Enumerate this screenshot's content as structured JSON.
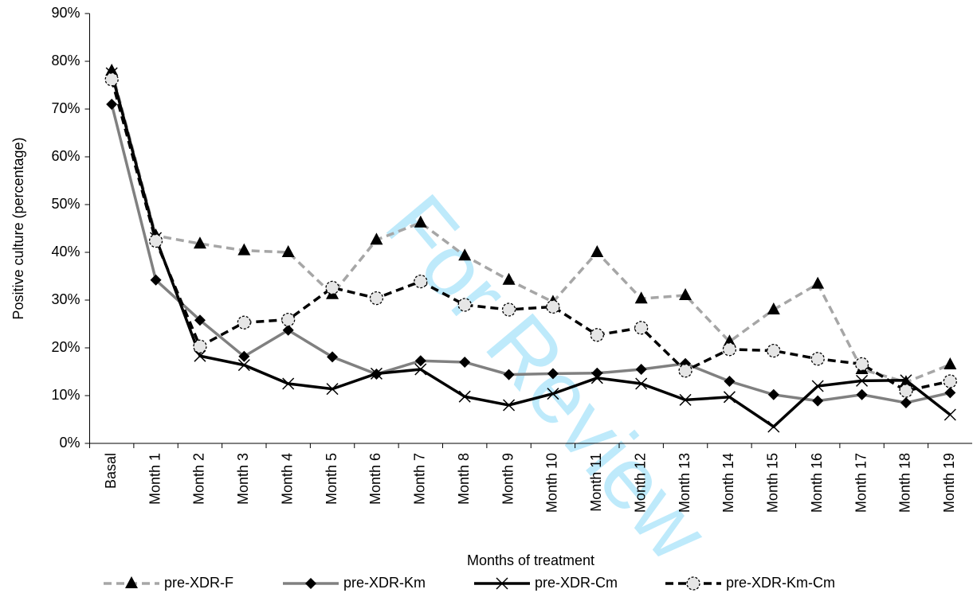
{
  "chart_data": {
    "type": "line",
    "y_label": "Positive culture (percentage)",
    "x_label": "Months of treatment",
    "watermark": "For Review",
    "categories": [
      "Basal",
      "Month 1",
      "Month 2",
      "Month 3",
      "Month 4",
      "Month 5",
      "Month 6",
      "Month 7",
      "Month 8",
      "Month 9",
      "Month 10",
      "Month 11",
      "Month 12",
      "Month 13",
      "Month 14",
      "Month 15",
      "Month 16",
      "Month 17",
      "Month 18",
      "Month 19"
    ],
    "series": [
      {
        "name": "pre-XDR-F",
        "color": "#a6a6a6",
        "dashed": true,
        "marker": "triangle",
        "values": [
          78,
          43.5,
          41.8,
          40.4,
          40,
          31.2,
          42.6,
          46.2,
          39.3,
          34.2,
          29.6,
          40,
          30.3,
          31,
          21.3,
          28,
          33.4,
          15.5,
          12.8,
          16.5
        ]
      },
      {
        "name": "pre-XDR-Km",
        "color": "#808080",
        "dashed": false,
        "marker": "diamond",
        "values": [
          71,
          34.2,
          25.8,
          18.2,
          23.7,
          18.1,
          14.5,
          17.3,
          17,
          14.4,
          14.6,
          14.7,
          15.5,
          16.7,
          13,
          10.2,
          8.9,
          10.2,
          8.5,
          10.6
        ]
      },
      {
        "name": "pre-XDR-Cm",
        "color": "#000000",
        "dashed": false,
        "marker": "x",
        "values": [
          77.5,
          43,
          18.3,
          16.4,
          12.5,
          11.4,
          14.6,
          15.5,
          9.8,
          8,
          10.4,
          13.7,
          12.5,
          9.1,
          9.7,
          3.5,
          12,
          13.1,
          13.2,
          6
        ]
      },
      {
        "name": "pre-XDR-Km-Cm",
        "color": "#000000",
        "dashed": true,
        "marker": "circle",
        "values": [
          76.2,
          42.4,
          20.3,
          25.3,
          25.9,
          32.6,
          30.4,
          33.9,
          29,
          28,
          28.6,
          22.7,
          24.2,
          15.2,
          19.7,
          19.4,
          17.7,
          16.6,
          11,
          13
        ]
      }
    ],
    "ylim": [
      0,
      90
    ],
    "yticks": [
      {
        "value": 0,
        "label": "0%"
      },
      {
        "value": 10,
        "label": "10%"
      },
      {
        "value": 20,
        "label": "20%"
      },
      {
        "value": 30,
        "label": "30%"
      },
      {
        "value": 40,
        "label": "40%"
      },
      {
        "value": 50,
        "label": "50%"
      },
      {
        "value": 60,
        "label": "60%"
      },
      {
        "value": 70,
        "label": "70%"
      },
      {
        "value": 80,
        "label": "80%"
      },
      {
        "value": 90,
        "label": "90%"
      }
    ],
    "grid": false,
    "legend": "bottom"
  }
}
